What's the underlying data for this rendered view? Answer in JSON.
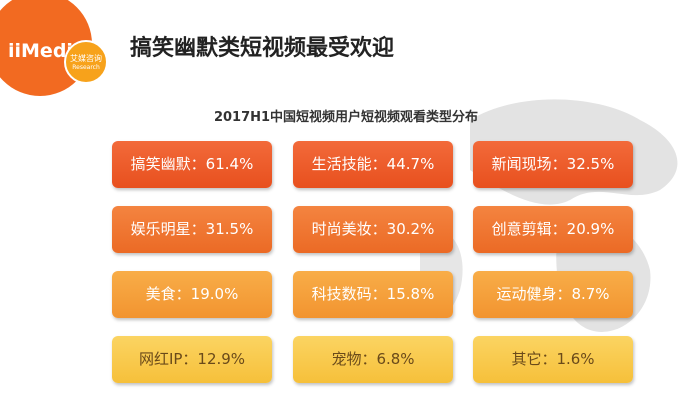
{
  "logo": {
    "brand": "iiMedia",
    "cn": "艾媒咨询",
    "en": "Research"
  },
  "header": {
    "title": "搞笑幽默类短视频最受欢迎"
  },
  "subtitle": "2017H1中国短视频用户短视频观看类型分布",
  "grid": {
    "rows": [
      [
        "搞笑幽默：61.4%",
        "生活技能：44.7%",
        "新闻现场：32.5%"
      ],
      [
        "娱乐明星：31.5%",
        "时尚美妆：30.2%",
        "创意剪辑：20.9%"
      ],
      [
        "美食：19.0%",
        "科技数码：15.8%",
        "运动健身：8.7%"
      ],
      [
        "网红IP：12.9%",
        "宠物：6.8%",
        "其它：1.6%"
      ]
    ]
  }
}
